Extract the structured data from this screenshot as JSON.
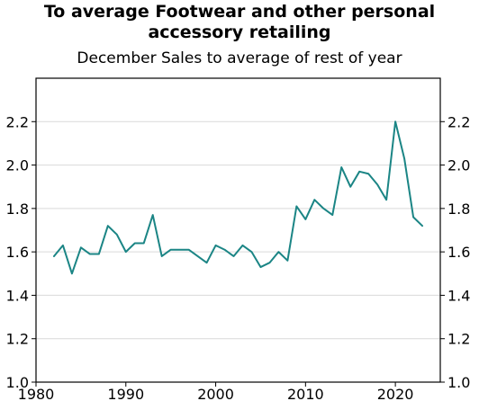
{
  "chart_data": {
    "type": "line",
    "title": "To average Footwear and other personal accessory retailing",
    "subtitle": "December Sales to average of rest of year",
    "xlabel": "",
    "ylabel": "",
    "xlim": [
      1980,
      2025
    ],
    "ylim": [
      1.0,
      2.4
    ],
    "x_ticks": [
      1980,
      1990,
      2000,
      2010,
      2020
    ],
    "y_ticks": [
      1.0,
      1.2,
      1.4,
      1.6,
      1.8,
      2.0,
      2.2
    ],
    "y_tick_labels": [
      "1.0",
      "1.2",
      "1.4",
      "1.6",
      "1.8",
      "2.0",
      "2.2"
    ],
    "grid": "horizontal",
    "line_color": "#1b8585",
    "series": [
      {
        "x": [
          1982,
          1983,
          1984,
          1985,
          1986,
          1987,
          1988,
          1989,
          1990,
          1991,
          1992,
          1993,
          1994,
          1995,
          1996,
          1997,
          1998,
          1999,
          2000,
          2001,
          2002,
          2003,
          2004,
          2005,
          2006,
          2007,
          2008,
          2009,
          2010,
          2011,
          2012,
          2013,
          2014,
          2015,
          2016,
          2017,
          2018,
          2019,
          2020,
          2021,
          2022,
          2023
        ],
        "values": [
          1.58,
          1.63,
          1.5,
          1.62,
          1.59,
          1.59,
          1.72,
          1.68,
          1.6,
          1.64,
          1.64,
          1.77,
          1.58,
          1.61,
          1.61,
          1.61,
          1.58,
          1.55,
          1.63,
          1.61,
          1.58,
          1.63,
          1.6,
          1.53,
          1.55,
          1.6,
          1.56,
          1.81,
          1.75,
          1.84,
          1.8,
          1.77,
          1.99,
          1.9,
          1.97,
          1.96,
          1.91,
          1.84,
          2.2,
          2.03,
          1.76,
          1.72
        ]
      }
    ]
  }
}
